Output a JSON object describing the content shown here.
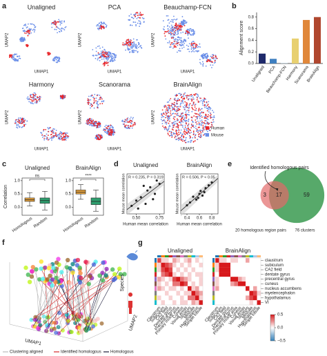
{
  "chart_data": [
    {
      "label": "a",
      "type": "embedding",
      "panels": [
        "Unaligned",
        "PCA",
        "Beauchamp-FCN",
        "Harmony",
        "Scanorama",
        "BrainAlign"
      ],
      "xlabel": "UMAP1",
      "ylabel": "UMAP2",
      "series": [
        {
          "name": "Human",
          "color": "#e8262a"
        },
        {
          "name": "Mouse",
          "color": "#6a8ee8"
        }
      ]
    },
    {
      "label": "b",
      "type": "bar",
      "ylabel": "Alignment score",
      "categories": [
        "Unaligned",
        "PCA",
        "Beauchamp-FCN",
        "Harmony",
        "Scanorama",
        "BrainAlign"
      ],
      "values": [
        0.17,
        0.08,
        0.005,
        0.43,
        0.75,
        0.8
      ],
      "colors": [
        "#1f2a6b",
        "#3f7fc0",
        "#a0c8e0",
        "#e8d070",
        "#e0873a",
        "#b0472f"
      ],
      "ylim": [
        0,
        0.88
      ],
      "yticks": [
        {
          "value": 0,
          "label": "0.0"
        },
        0.2,
        0.4,
        0.6,
        0.8
      ]
    },
    {
      "label": "c",
      "type": "box",
      "ylabel": "Correlation",
      "colors": [
        "#e8a33d",
        "#2e9e6e"
      ],
      "ylim": [
        -0.3,
        1.1
      ],
      "yticks": [
        {
          "value": 0,
          "label": "0.0"
        },
        0.5,
        {
          "value": 1,
          "label": "1.0"
        }
      ],
      "subplots": [
        {
          "title": "Unaligned",
          "categories": [
            "Homologous",
            "Random"
          ],
          "boxes": [
            [
              0.05,
              0.22,
              0.28,
              0.35,
              0.55
            ],
            [
              -0.1,
              0.15,
              0.25,
              0.35,
              0.6
            ]
          ],
          "annotation": "ns"
        },
        {
          "title": "BrainAlign",
          "categories": [
            "Homologous",
            "Random"
          ],
          "boxes": [
            [
              0.3,
              0.5,
              0.57,
              0.65,
              0.85
            ],
            [
              -0.15,
              0.1,
              0.22,
              0.35,
              0.65
            ]
          ],
          "annotation": "****"
        }
      ]
    },
    {
      "label": "d",
      "type": "scatter",
      "xlabel": "Human mean correlation",
      "ylabel": "Mouse mean correlation",
      "color": "#222222",
      "subplots": [
        {
          "title": "Unaligned",
          "annotation": "R = 0.235, P = 0.319",
          "x": [
            0.45,
            0.5,
            0.55,
            0.6,
            0.62,
            0.65,
            0.7,
            0.72,
            0.58,
            0.52,
            0.68,
            0.75
          ],
          "y": [
            0.32,
            0.4,
            0.45,
            0.35,
            0.55,
            0.6,
            0.5,
            0.7,
            0.62,
            0.28,
            0.42,
            0.65
          ],
          "xlim": [
            0.4,
            0.8
          ],
          "ylim": [
            0.2,
            0.8
          ],
          "xticks": [
            {
              "value": 0.5,
              "label": "0.50"
            },
            {
              "value": 0.75,
              "label": "0.75"
            }
          ]
        },
        {
          "title": "BrainAlign",
          "annotation": "R = 0.506, P < 0.05",
          "x": [
            0.4,
            0.45,
            0.5,
            0.55,
            0.6,
            0.62,
            0.65,
            0.7,
            0.75,
            0.8,
            0.58,
            0.68
          ],
          "y": [
            0.35,
            0.4,
            0.5,
            0.45,
            0.55,
            0.6,
            0.52,
            0.65,
            0.7,
            0.75,
            0.48,
            0.58
          ],
          "xlim": [
            0.3,
            0.9
          ],
          "ylim": [
            0.2,
            0.9
          ],
          "xticks": [
            0.4,
            0.6,
            0.8
          ]
        }
      ]
    },
    {
      "label": "e",
      "type": "venn",
      "title": "Identified homologous pairs",
      "overlap": 17,
      "sets": [
        {
          "label": "20 homologous region pairs",
          "only": 3,
          "color": "#e36a6a"
        },
        {
          "label": "76 clusters",
          "only": 59,
          "color": "#3a9a50"
        }
      ]
    },
    {
      "label": "f",
      "type": "3d",
      "xlabel": "UMAP1",
      "ylabel": "UMAP2",
      "zlabel": "Species",
      "series": [
        {
          "name": "Clustering aligned",
          "color": "#bbbbbb"
        },
        {
          "name": "Identified homologous",
          "color": "#d62728"
        },
        {
          "name": "Homologous",
          "color": "#1a1a3a"
        }
      ]
    },
    {
      "label": "g",
      "type": "heatmap",
      "x_labels": [
        "Claustrum",
        "Subiculum",
        "CA2 field",
        "Dentate gyrus",
        "Precentral gyrus",
        "Primary motor area",
        "Cuneus",
        "Visual areas",
        "Striatum",
        "Medulla",
        "Hypothalamus",
        "Simple lobule"
      ],
      "y_labels": [
        "claustrum",
        "subiculum",
        "CA2 field",
        "dentate gyrus",
        "precentral gyrus",
        "cuneus",
        "nucleus accumbens",
        "myelencephalon",
        "hypothalamus",
        "VI"
      ],
      "vlim": [
        -0.5,
        0.5
      ],
      "colorbar_ticks": [
        0.5,
        {
          "value": 0,
          "label": "0.0"
        },
        {
          "value": -0.5,
          "label": "−0.5"
        }
      ],
      "subplots": [
        {
          "title": "Unaligned",
          "values": [
            [
              0.4,
              0.1,
              0.1,
              0.0,
              0.2,
              0.1,
              0.0,
              0.1,
              0.2,
              0.0,
              0.1,
              0.0
            ],
            [
              0.1,
              0.5,
              0.4,
              0.3,
              0.1,
              0.0,
              0.1,
              0.0,
              0.1,
              0.0,
              0.0,
              0.1
            ],
            [
              0.1,
              0.4,
              0.5,
              0.4,
              0.0,
              0.1,
              0.0,
              0.1,
              0.0,
              0.1,
              0.0,
              0.0
            ],
            [
              0.0,
              0.3,
              0.4,
              0.5,
              0.1,
              0.0,
              0.1,
              0.0,
              0.1,
              0.0,
              0.1,
              0.1
            ],
            [
              0.2,
              0.1,
              0.0,
              0.1,
              0.4,
              0.5,
              0.3,
              0.2,
              0.1,
              0.0,
              0.0,
              0.1
            ],
            [
              0.1,
              0.0,
              0.1,
              0.0,
              0.3,
              0.3,
              0.5,
              0.4,
              0.0,
              0.1,
              0.0,
              0.1
            ],
            [
              0.2,
              0.1,
              0.0,
              0.1,
              0.1,
              0.0,
              0.1,
              0.0,
              0.5,
              0.1,
              0.2,
              0.0
            ],
            [
              0.0,
              0.0,
              0.1,
              0.0,
              0.0,
              0.1,
              0.0,
              0.1,
              0.1,
              0.6,
              0.3,
              0.2
            ],
            [
              0.1,
              0.0,
              0.0,
              0.1,
              0.0,
              0.0,
              0.1,
              0.0,
              0.3,
              0.3,
              0.6,
              0.1
            ],
            [
              0.0,
              0.1,
              0.0,
              0.0,
              0.1,
              0.0,
              0.1,
              0.1,
              0.0,
              0.2,
              0.1,
              0.5
            ]
          ]
        },
        {
          "title": "BrainAlign",
          "values": [
            [
              0.9,
              0.1,
              0.1,
              0.0,
              0.1,
              0.1,
              0.0,
              0.0,
              0.2,
              0.0,
              0.0,
              0.0
            ],
            [
              0.1,
              0.8,
              0.6,
              0.5,
              0.0,
              0.0,
              0.0,
              0.0,
              0.0,
              0.0,
              0.0,
              0.0
            ],
            [
              0.1,
              0.6,
              0.8,
              0.6,
              0.0,
              0.0,
              0.0,
              0.0,
              0.0,
              0.0,
              0.0,
              0.0
            ],
            [
              0.0,
              0.5,
              0.6,
              0.8,
              0.0,
              0.0,
              0.0,
              0.0,
              0.0,
              0.0,
              0.0,
              0.0
            ],
            [
              0.1,
              0.0,
              0.0,
              0.0,
              0.8,
              0.7,
              0.2,
              0.1,
              0.0,
              0.0,
              0.0,
              0.0
            ],
            [
              0.1,
              0.0,
              0.0,
              0.0,
              0.2,
              0.3,
              0.8,
              0.6,
              0.0,
              0.0,
              0.0,
              0.0
            ],
            [
              0.2,
              0.0,
              0.0,
              0.0,
              0.0,
              0.0,
              0.0,
              0.0,
              0.8,
              0.0,
              0.2,
              0.0
            ],
            [
              0.0,
              0.0,
              0.0,
              0.0,
              0.0,
              0.0,
              0.0,
              0.0,
              0.0,
              0.8,
              0.4,
              0.1
            ],
            [
              0.0,
              0.0,
              0.0,
              0.0,
              0.0,
              0.0,
              0.0,
              0.0,
              0.2,
              0.4,
              0.8,
              0.0
            ],
            [
              0.0,
              0.0,
              0.0,
              0.0,
              0.0,
              0.0,
              0.0,
              0.0,
              0.0,
              0.1,
              0.0,
              0.9
            ]
          ]
        }
      ]
    }
  ]
}
